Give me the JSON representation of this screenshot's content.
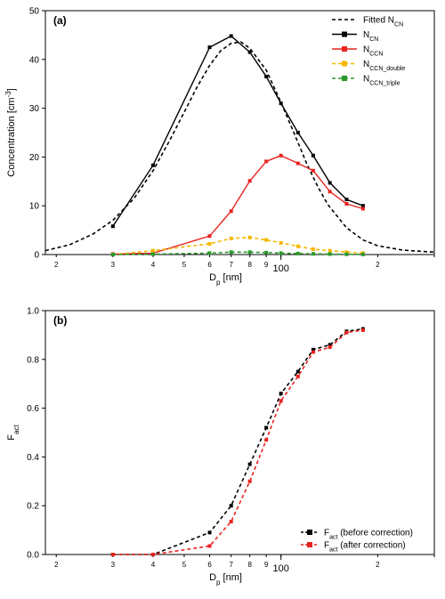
{
  "chart_data": [
    {
      "type": "line",
      "panel_label": "(a)",
      "ylabel": "Concentration [cm⁻³]",
      "xlabel": "Dp [nm]",
      "xscale": "log",
      "xlim": [
        18.5,
        300
      ],
      "ylim": [
        0,
        50
      ],
      "x_ticks": [
        {
          "value": 20,
          "label": "2"
        },
        {
          "value": 30,
          "label": "3"
        },
        {
          "value": 40,
          "label": "4"
        },
        {
          "value": 50,
          "label": "5"
        },
        {
          "value": 60,
          "label": "6"
        },
        {
          "value": 70,
          "label": "7"
        },
        {
          "value": 80,
          "label": "8"
        },
        {
          "value": 90,
          "label": "9"
        },
        {
          "value": 100,
          "label": "100"
        },
        {
          "value": 200,
          "label": "2"
        }
      ],
      "y_ticks": [
        {
          "value": 0,
          "label": "0"
        },
        {
          "value": 10,
          "label": "10"
        },
        {
          "value": 20,
          "label": "20"
        },
        {
          "value": 30,
          "label": "30"
        },
        {
          "value": 40,
          "label": "40"
        },
        {
          "value": 50,
          "label": "50"
        }
      ],
      "legend": "top-right",
      "series": [
        {
          "name": "Fitted N",
          "sub": "CN",
          "color": "#000000",
          "dash": true,
          "marker": false,
          "points": [
            [
              18.5,
              0.8
            ],
            [
              22,
              2.0
            ],
            [
              26,
              4.2
            ],
            [
              30,
              7.0
            ],
            [
              35,
              11.6
            ],
            [
              40,
              17.2
            ],
            [
              45,
              23.3
            ],
            [
              50,
              29.2
            ],
            [
              55,
              34.5
            ],
            [
              60,
              38.8
            ],
            [
              65,
              41.8
            ],
            [
              70,
              43.3
            ],
            [
              75,
              43.6
            ],
            [
              80,
              42.3
            ],
            [
              90,
              37.8
            ],
            [
              100,
              31.2
            ],
            [
              110,
              24.8
            ],
            [
              120,
              18.8
            ],
            [
              130,
              14.0
            ],
            [
              140,
              10.2
            ],
            [
              160,
              5.5
            ],
            [
              180,
              3.0
            ],
            [
              200,
              1.8
            ],
            [
              240,
              0.9
            ],
            [
              300,
              0.5
            ]
          ]
        },
        {
          "name": "N",
          "sub": "CN",
          "color": "#000000",
          "dash": false,
          "marker": true,
          "points": [
            [
              30,
              5.8
            ],
            [
              40,
              18.3
            ],
            [
              60,
              42.5
            ],
            [
              70,
              44.8
            ],
            [
              80,
              41.5
            ],
            [
              90,
              36.5
            ],
            [
              100,
              31.0
            ],
            [
              113,
              25.0
            ],
            [
              126,
              20.3
            ],
            [
              142,
              14.7
            ],
            [
              160,
              11.3
            ],
            [
              180,
              10.0
            ]
          ]
        },
        {
          "name": "N",
          "sub": "CCN",
          "color": "#e8231f",
          "dash": false,
          "marker": true,
          "points": [
            [
              30,
              0.1
            ],
            [
              40,
              0.3
            ],
            [
              60,
              3.8
            ],
            [
              70,
              8.9
            ],
            [
              80,
              15.1
            ],
            [
              90,
              19.1
            ],
            [
              100,
              20.3
            ],
            [
              113,
              18.7
            ],
            [
              126,
              17.2
            ],
            [
              142,
              12.9
            ],
            [
              160,
              10.4
            ],
            [
              180,
              9.4
            ]
          ]
        },
        {
          "name": "N",
          "sub": "CCN_double",
          "color": "#f5b700",
          "dash": true,
          "marker": true,
          "points": [
            [
              30,
              0.0
            ],
            [
              40,
              0.8
            ],
            [
              60,
              2.2
            ],
            [
              70,
              3.3
            ],
            [
              80,
              3.5
            ],
            [
              90,
              3.0
            ],
            [
              100,
              2.4
            ],
            [
              113,
              1.7
            ],
            [
              126,
              1.1
            ],
            [
              142,
              0.8
            ],
            [
              160,
              0.5
            ],
            [
              180,
              0.3
            ]
          ]
        },
        {
          "name": "N",
          "sub": "CCN_triple",
          "color": "#2a9a2a",
          "dash": true,
          "marker": true,
          "points": [
            [
              30,
              0.0
            ],
            [
              40,
              0.1
            ],
            [
              60,
              0.3
            ],
            [
              70,
              0.5
            ],
            [
              80,
              0.5
            ],
            [
              90,
              0.4
            ],
            [
              100,
              0.3
            ],
            [
              113,
              0.2
            ],
            [
              126,
              0.15
            ],
            [
              142,
              0.1
            ],
            [
              160,
              0.05
            ],
            [
              180,
              0.03
            ]
          ]
        }
      ]
    },
    {
      "type": "line",
      "panel_label": "(b)",
      "ylabel": "Fact",
      "xlabel": "Dp [nm]",
      "xscale": "log",
      "xlim": [
        18.5,
        300
      ],
      "ylim": [
        0,
        1.0
      ],
      "x_ticks": [
        {
          "value": 20,
          "label": "2"
        },
        {
          "value": 30,
          "label": "3"
        },
        {
          "value": 40,
          "label": "4"
        },
        {
          "value": 50,
          "label": "5"
        },
        {
          "value": 60,
          "label": "6"
        },
        {
          "value": 70,
          "label": "7"
        },
        {
          "value": 80,
          "label": "8"
        },
        {
          "value": 90,
          "label": "9"
        },
        {
          "value": 100,
          "label": "100"
        },
        {
          "value": 200,
          "label": "2"
        }
      ],
      "y_ticks": [
        {
          "value": 0,
          "label": "0.0"
        },
        {
          "value": 0.2,
          "label": "0.2"
        },
        {
          "value": 0.4,
          "label": "0.4"
        },
        {
          "value": 0.6,
          "label": "0.6"
        },
        {
          "value": 0.8,
          "label": "0.8"
        },
        {
          "value": 1.0,
          "label": "1.0"
        }
      ],
      "legend": "bottom-right",
      "series": [
        {
          "name": "F",
          "sub": "act",
          "suffix": " (before correction)",
          "color": "#000000",
          "dash": true,
          "marker": true,
          "points": [
            [
              30,
              0.0
            ],
            [
              40,
              0.0
            ],
            [
              60,
              0.09
            ],
            [
              70,
              0.2
            ],
            [
              80,
              0.37
            ],
            [
              90,
              0.52
            ],
            [
              100,
              0.66
            ],
            [
              113,
              0.75
            ],
            [
              126,
              0.84
            ],
            [
              142,
              0.86
            ],
            [
              160,
              0.915
            ],
            [
              180,
              0.925
            ]
          ]
        },
        {
          "name": "F",
          "sub": "act",
          "suffix": " (after correction)",
          "color": "#e8231f",
          "dash": true,
          "marker": true,
          "points": [
            [
              30,
              0.0
            ],
            [
              40,
              0.0
            ],
            [
              60,
              0.035
            ],
            [
              70,
              0.135
            ],
            [
              80,
              0.3
            ],
            [
              90,
              0.47
            ],
            [
              100,
              0.63
            ],
            [
              113,
              0.73
            ],
            [
              126,
              0.83
            ],
            [
              142,
              0.85
            ],
            [
              160,
              0.91
            ],
            [
              180,
              0.92
            ]
          ]
        }
      ]
    }
  ]
}
